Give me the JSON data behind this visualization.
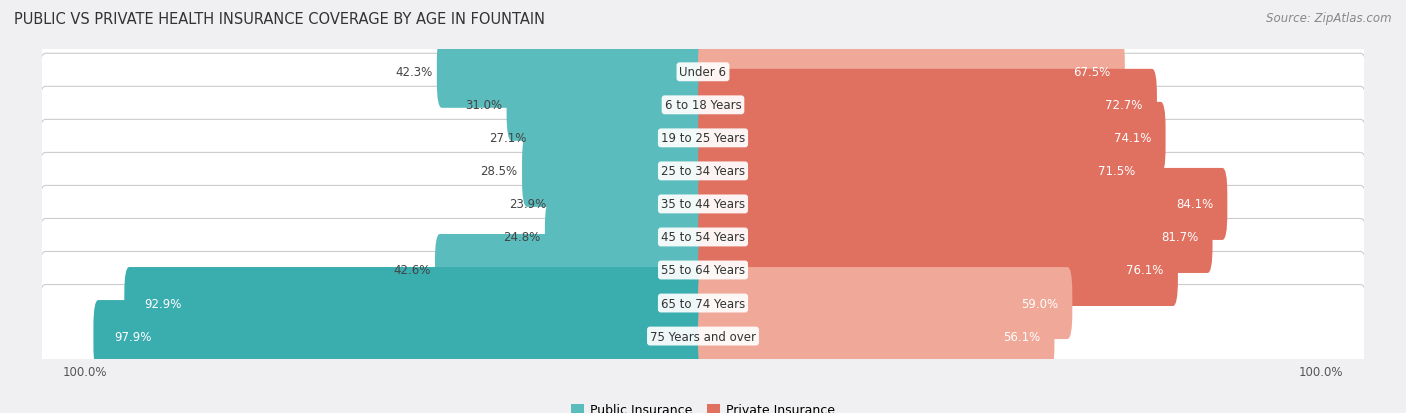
{
  "title": "PUBLIC VS PRIVATE HEALTH INSURANCE COVERAGE BY AGE IN FOUNTAIN",
  "source": "Source: ZipAtlas.com",
  "categories": [
    "Under 6",
    "6 to 18 Years",
    "19 to 25 Years",
    "25 to 34 Years",
    "35 to 44 Years",
    "45 to 54 Years",
    "55 to 64 Years",
    "65 to 74 Years",
    "75 Years and over"
  ],
  "public": [
    42.3,
    31.0,
    27.1,
    28.5,
    23.9,
    24.8,
    42.6,
    92.9,
    97.9
  ],
  "private": [
    67.5,
    72.7,
    74.1,
    71.5,
    84.1,
    81.7,
    76.1,
    59.0,
    56.1
  ],
  "pub_color_high": "#3aadaf",
  "pub_color_low": "#5bbcbe",
  "priv_color_high": "#e07060",
  "priv_color_low": "#f0a898",
  "bg_color": "#f0f0f2",
  "row_color": "#ffffff",
  "public_legend": "Public Insurance",
  "private_legend": "Private Insurance",
  "title_fontsize": 10.5,
  "source_fontsize": 8.5,
  "bar_label_fontsize": 8.5,
  "cat_label_fontsize": 8.5,
  "legend_fontsize": 9,
  "figure_width": 14.06,
  "figure_height": 4.14,
  "dpi": 100
}
